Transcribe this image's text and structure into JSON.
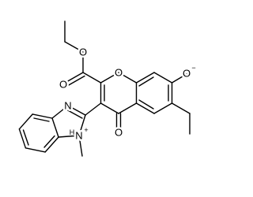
{
  "atoms": {
    "ester_carbonyl": "O",
    "ester_ether": "O",
    "ring_oxygen": "O",
    "ketone": "O",
    "phenolate": "O",
    "phenolate_charge": "−",
    "imine_n": "N",
    "ammonium_n": "N",
    "ammonium_h": "H",
    "ammonium_charge": "+"
  }
}
